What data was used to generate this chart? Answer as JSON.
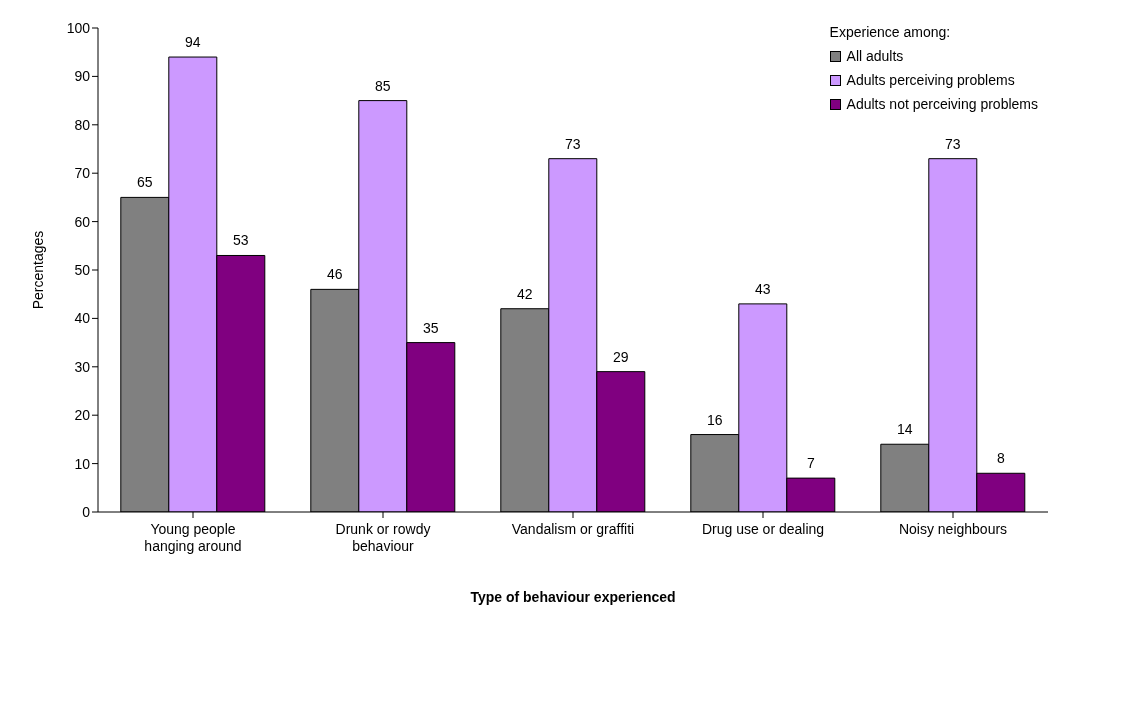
{
  "chart_data": {
    "type": "bar",
    "xlabel": "Type of behaviour experienced",
    "ylabel": "Percentages",
    "legend_title": "Experience among:",
    "categories": [
      "Young people hanging around",
      "Drunk or rowdy behaviour",
      "Vandalism or graffiti",
      "Drug use or dealing",
      "Noisy neighbours"
    ],
    "series": [
      {
        "name": "All adults",
        "color": "#808080",
        "values": [
          65,
          46,
          42,
          16,
          14
        ]
      },
      {
        "name": "Adults perceiving problems",
        "color": "#cc99ff",
        "values": [
          94,
          85,
          73,
          43,
          73
        ]
      },
      {
        "name": "Adults not perceiving problems",
        "color": "#800080",
        "values": [
          53,
          35,
          29,
          7,
          8
        ]
      }
    ],
    "ylim": [
      0,
      100
    ],
    "yticks": [
      0,
      10,
      20,
      30,
      40,
      50,
      60,
      70,
      80,
      90,
      100
    ],
    "grid": false,
    "legend": "top right",
    "data_labels": true
  }
}
